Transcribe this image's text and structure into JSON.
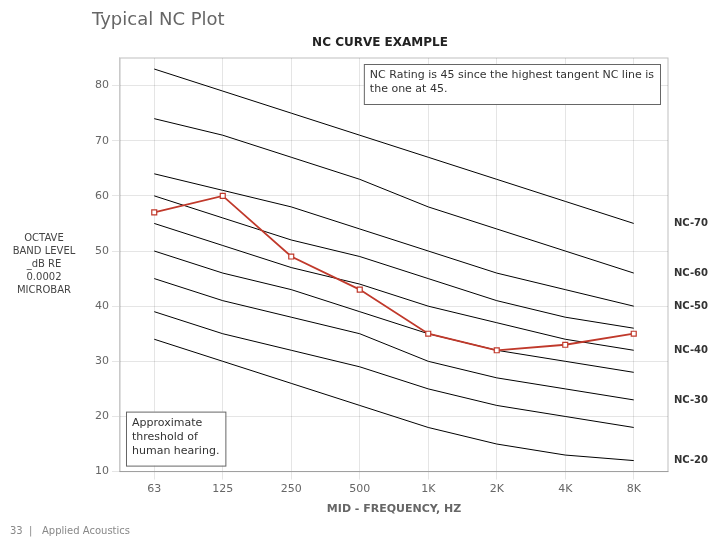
{
  "chart_data": {
    "type": "line",
    "title": "Typical NC Plot",
    "subtitle": "NC CURVE EXAMPLE",
    "xlabel": "MID - FREQUENCY, HZ",
    "ylabel": "OCTAVE\nBAND LEVEL\n_dB RE\n0.0002\nMICROBAR",
    "categories": [
      "63",
      "125",
      "250",
      "500",
      "1K",
      "2K",
      "4K",
      "8K"
    ],
    "series": [
      {
        "name": "NC-70",
        "color": "#000000",
        "marker": "none",
        "values": [
          83,
          79,
          75,
          71,
          67,
          63,
          59,
          55
        ]
      },
      {
        "name": "NC-60",
        "color": "#000000",
        "marker": "none",
        "values": [
          74,
          71,
          67,
          63,
          58,
          54,
          50,
          46
        ]
      },
      {
        "name": "NC-50",
        "color": "#000000",
        "marker": "none",
        "values": [
          64,
          61,
          58,
          54,
          50,
          46,
          43,
          40
        ]
      },
      {
        "color": "#000000",
        "marker": "none",
        "values": [
          60,
          56,
          52,
          49,
          45,
          41,
          38,
          36
        ]
      },
      {
        "name": "NC-40",
        "color": "#000000",
        "marker": "none",
        "values": [
          55,
          51,
          47,
          44,
          40,
          37,
          34,
          32
        ]
      },
      {
        "color": "#000000",
        "marker": "none",
        "values": [
          50,
          46,
          43,
          39,
          35,
          32,
          30,
          28
        ]
      },
      {
        "name": "NC-30",
        "color": "#000000",
        "marker": "none",
        "values": [
          45,
          41,
          38,
          35,
          30,
          27,
          25,
          23
        ]
      },
      {
        "color": "#000000",
        "marker": "none",
        "values": [
          39,
          35,
          32,
          29,
          25,
          22,
          20,
          18
        ]
      },
      {
        "name": "NC-20",
        "color": "#000000",
        "marker": "none",
        "values": [
          34,
          30,
          26,
          22,
          18,
          15,
          13,
          12
        ]
      },
      {
        "color": "#c0392b",
        "marker": "square",
        "values": [
          57,
          60,
          49,
          43,
          35,
          32,
          33,
          35
        ]
      }
    ],
    "ylim": [
      10,
      85
    ],
    "yticks": [
      10,
      20,
      30,
      40,
      50,
      60,
      70,
      80
    ],
    "grid": true,
    "annotations": [
      {
        "text": "NC Rating is 45 since the highest tangent NC line is\nthe one at 45."
      },
      {
        "text": "Approximate\nthreshold of\nhuman hearing."
      },
      {
        "text": "33  |   Applied Acoustics"
      }
    ]
  }
}
